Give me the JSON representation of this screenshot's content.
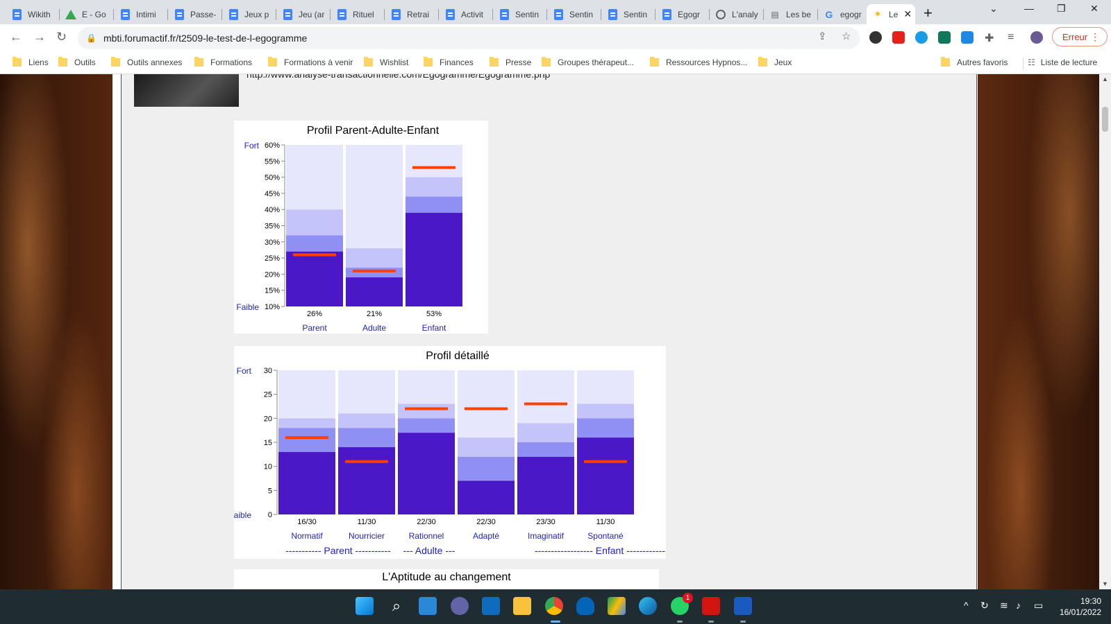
{
  "tabs": [
    {
      "label": "Wikith",
      "icon": "docs-icon"
    },
    {
      "label": "E - Go",
      "icon": "drive-icon"
    },
    {
      "label": "Intimi",
      "icon": "docs-icon"
    },
    {
      "label": "Passe-",
      "icon": "docs-icon"
    },
    {
      "label": "Jeux p",
      "icon": "docs-icon"
    },
    {
      "label": "Jeu (ar",
      "icon": "docs-icon"
    },
    {
      "label": "Rituel",
      "icon": "docs-icon"
    },
    {
      "label": "Retrai",
      "icon": "docs-icon"
    },
    {
      "label": "Activit",
      "icon": "docs-icon"
    },
    {
      "label": "Sentin",
      "icon": "docs-icon"
    },
    {
      "label": "Sentin",
      "icon": "docs-icon"
    },
    {
      "label": "Sentin",
      "icon": "docs-icon"
    },
    {
      "label": "Egogr",
      "icon": "docs-icon"
    },
    {
      "label": "L'analy",
      "icon": "globe-icon"
    },
    {
      "label": "Les be",
      "icon": "page-icon"
    },
    {
      "label": "egogr",
      "icon": "google-icon"
    },
    {
      "label": "Le",
      "icon": "forum-icon",
      "active": true
    }
  ],
  "address": {
    "url": "mbti.forumactif.fr/t2509-le-test-de-l-egogramme"
  },
  "profile_button": {
    "label": "Erreur"
  },
  "bookmarks": [
    "Liens",
    "Outils",
    "Outils annexes",
    "Formations",
    "Formations à venir",
    "Wishlist",
    "Finances",
    "Presse",
    "Groupes thérapeut...",
    "Ressources Hypnos...",
    "Jeux"
  ],
  "bookmarks_right": [
    "Autres favoris",
    "Liste de lecture"
  ],
  "post": {
    "link_text": "http://www.analyse-transactionnelle.com/Egogramme/Egogramme.php"
  },
  "chart_data": [
    {
      "type": "bar",
      "title": "Profil Parent-Adulte-Enfant",
      "ylim": [
        10,
        60
      ],
      "yticks": [
        "10%",
        "15%",
        "20%",
        "25%",
        "30%",
        "35%",
        "40%",
        "45%",
        "50%",
        "55%",
        "60%"
      ],
      "y_top_label": "Fort",
      "y_bottom_label": "Faible",
      "categories": [
        "Parent",
        "Adulte",
        "Enfant"
      ],
      "data_labels": [
        "26%",
        "21%",
        "53%"
      ],
      "values": [
        26,
        21,
        53
      ],
      "bands": [
        {
          "dark_top": 27,
          "mid_top": 32,
          "light_top": 40
        },
        {
          "dark_top": 19,
          "mid_top": 22,
          "light_top": 28
        },
        {
          "dark_top": 39,
          "mid_top": 44,
          "light_top": 50
        }
      ],
      "colors": {
        "dark": "#4b18c8",
        "mid": "#8f8ff4",
        "light": "#c4c4fa",
        "bg": "#e6e6fc",
        "marker": "#ff4000"
      }
    },
    {
      "type": "bar",
      "title": "Profil détaillé",
      "ylim": [
        0,
        30
      ],
      "yticks": [
        "0",
        "5",
        "10",
        "15",
        "20",
        "25",
        "30"
      ],
      "y_top_label": "Fort",
      "y_bottom_label": "Faible",
      "categories": [
        "Normatif",
        "Nourricier",
        "Rationnel",
        "Adapté",
        "Imaginatif",
        "Spontané"
      ],
      "data_labels": [
        "16/30",
        "11/30",
        "22/30",
        "22/30",
        "23/30",
        "11/30"
      ],
      "values": [
        16,
        11,
        22,
        22,
        23,
        11
      ],
      "bands": [
        {
          "dark_top": 13,
          "mid_top": 18,
          "light_top": 20
        },
        {
          "dark_top": 14,
          "mid_top": 18,
          "light_top": 21
        },
        {
          "dark_top": 17,
          "mid_top": 20,
          "light_top": 23
        },
        {
          "dark_top": 7,
          "mid_top": 12,
          "light_top": 16
        },
        {
          "dark_top": 12,
          "mid_top": 15,
          "light_top": 19
        },
        {
          "dark_top": 16,
          "mid_top": 20,
          "light_top": 23
        }
      ],
      "groups": [
        "----------- Parent -----------",
        "--- Adulte ---",
        "------------------ Enfant ------------------"
      ],
      "colors": {
        "dark": "#4b18c8",
        "mid": "#8f8ff4",
        "light": "#c4c4fa",
        "bg": "#e6e6fc",
        "marker": "#ff4000"
      }
    }
  ],
  "next_section": {
    "title": "L'Aptitude au changement"
  },
  "taskbar": {
    "badge": "1",
    "time": "19:30",
    "date": "16/01/2022"
  }
}
